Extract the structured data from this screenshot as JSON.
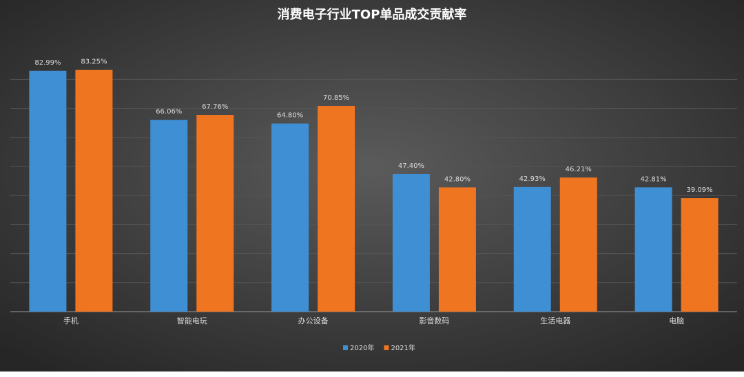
{
  "chart_data": {
    "type": "bar",
    "title": "消费电子行业TOP单品成交贡献率",
    "categories": [
      "手机",
      "智能电玩",
      "办公设备",
      "影音数码",
      "生活电器",
      "电脑"
    ],
    "series": [
      {
        "name": "2020年",
        "color": "#3f8fd4",
        "values": [
          82.99,
          66.06,
          64.8,
          47.4,
          42.93,
          42.81
        ],
        "value_labels": [
          "82.99%",
          "66.06%",
          "64.80%",
          "47.40%",
          "42.93%",
          "42.81%"
        ]
      },
      {
        "name": "2021年",
        "color": "#ef7521",
        "values": [
          83.25,
          67.76,
          70.85,
          42.8,
          46.21,
          39.09
        ],
        "value_labels": [
          "83.25%",
          "67.76%",
          "70.85%",
          "42.80%",
          "46.21%",
          "39.09%"
        ]
      }
    ],
    "ylim": [
      0,
      100
    ],
    "yticks": [
      0,
      10,
      20,
      30,
      40,
      50,
      60,
      70,
      80
    ],
    "grid": true,
    "legend": "bottom"
  }
}
